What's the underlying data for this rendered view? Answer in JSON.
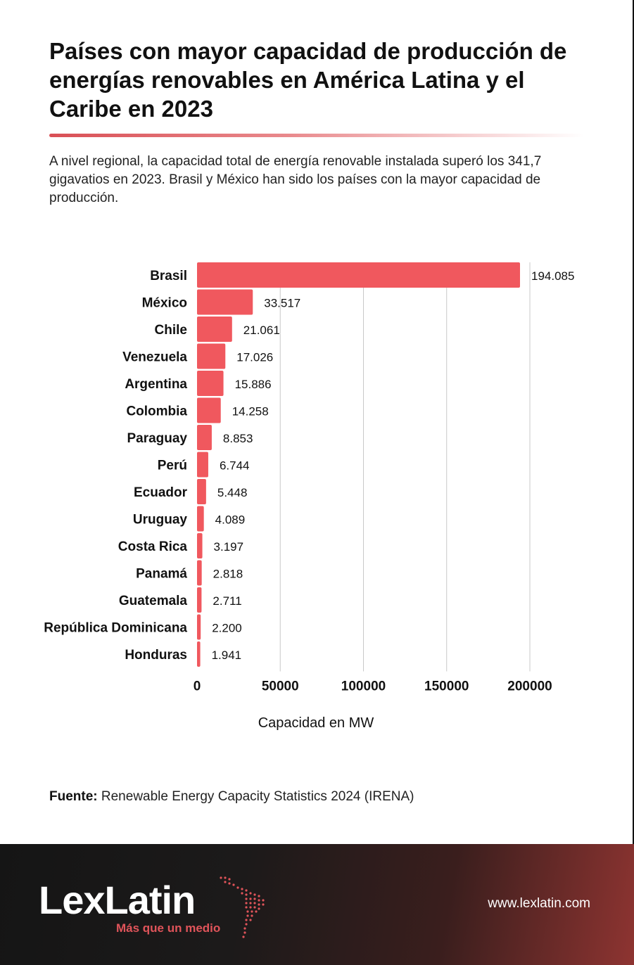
{
  "header": {
    "title": "Países con mayor capacidad de producción de energías renovables en América Latina y el Caribe en 2023",
    "subtitle": "A nivel regional, la capacidad total de energía renovable instalada superó los 341,7 gigavatios en 2023. Brasil y México han sido los países con la mayor capacidad de producción."
  },
  "chart_data": {
    "type": "bar",
    "orientation": "horizontal",
    "categories": [
      "Brasil",
      "México",
      "Chile",
      "Venezuela",
      "Argentina",
      "Colombia",
      "Paraguay",
      "Perú",
      "Ecuador",
      "Uruguay",
      "Costa Rica",
      "Panamá",
      "Guatemala",
      "República Dominicana",
      "Honduras"
    ],
    "values": [
      194085,
      33517,
      21061,
      17026,
      15886,
      14258,
      8853,
      6744,
      5448,
      4089,
      3197,
      2818,
      2711,
      2200,
      1941
    ],
    "value_labels": [
      "194.085",
      "33.517",
      "21.061",
      "17.026",
      "15.886",
      "14.258",
      "8.853",
      "6.744",
      "5.448",
      "4.089",
      "3.197",
      "2.818",
      "2.711",
      "2.200",
      "1.941"
    ],
    "xlabel": "Capacidad en MW",
    "xticks": [
      0,
      50000,
      100000,
      150000,
      200000
    ],
    "xlim": [
      0,
      200000
    ],
    "grid": "vertical",
    "bar_color": "#f0585e"
  },
  "source": {
    "label": "Fuente:",
    "text": "Renewable Energy Capacity Statistics 2024 (IRENA)"
  },
  "footer": {
    "logo": "LexLatin",
    "tagline": "Más que un medio",
    "url": "www.lexlatin.com",
    "accent": "#e0545a"
  }
}
